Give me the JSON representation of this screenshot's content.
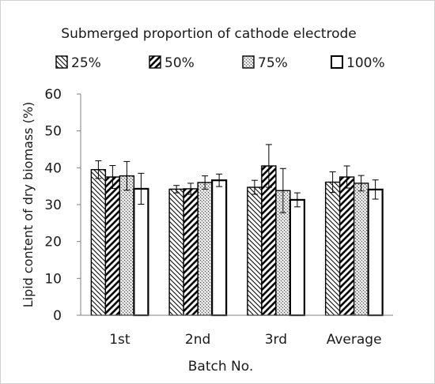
{
  "chart_data": {
    "type": "bar",
    "title": "Submerged proportion of cathode electrode",
    "xlabel": "Batch No.",
    "ylabel": "Lipid content of dry biomass (%)",
    "ylim": [
      0,
      60
    ],
    "yticks": [
      0,
      10,
      20,
      30,
      40,
      50,
      60
    ],
    "grid": false,
    "legend_position": "top",
    "categories": [
      "1st",
      "2nd",
      "3rd",
      "Average"
    ],
    "series": [
      {
        "name": "25%",
        "pattern": "diagonal-back-narrow",
        "values": [
          39.5,
          34.2,
          34.7,
          36.1
        ],
        "errors": [
          2.4,
          1.0,
          1.9,
          2.8
        ]
      },
      {
        "name": "50%",
        "pattern": "diagonal-forward-wide",
        "values": [
          37.5,
          34.3,
          40.5,
          37.5
        ],
        "errors": [
          3.1,
          1.5,
          5.8,
          3.0
        ]
      },
      {
        "name": "75%",
        "pattern": "checker-dots",
        "values": [
          37.8,
          36.0,
          33.8,
          35.8
        ],
        "errors": [
          3.9,
          1.8,
          6.0,
          2.1
        ]
      },
      {
        "name": "100%",
        "pattern": "solid-white",
        "values": [
          34.3,
          36.6,
          31.3,
          34.1
        ],
        "errors": [
          4.2,
          1.7,
          1.9,
          2.6
        ]
      }
    ],
    "colors": {
      "stroke": "#000000",
      "fill": "#ffffff",
      "axis": "#808080",
      "text": "#1a1a1a"
    }
  }
}
